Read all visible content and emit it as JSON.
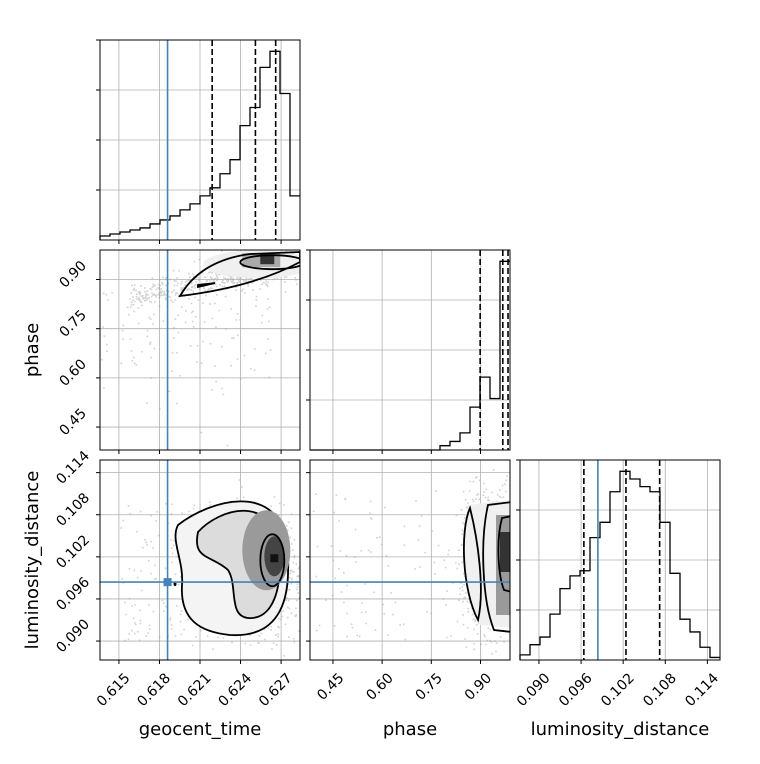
{
  "chart_data": {
    "type": "corner",
    "parameters": [
      "geocent_time",
      "phase",
      "luminosity_distance"
    ],
    "ranges": {
      "geocent_time": [
        0.6136,
        0.6284
      ],
      "phase": [
        0.38,
        0.99
      ],
      "luminosity_distance": [
        0.0873,
        0.1158
      ]
    },
    "ticks": {
      "geocent_time": [
        "0.615",
        "0.618",
        "0.621",
        "0.624",
        "0.627"
      ],
      "phase": [
        "0.45",
        "0.60",
        "0.75",
        "0.90"
      ],
      "luminosity_distance": [
        "0.090",
        "0.096",
        "0.102",
        "0.108",
        "0.114"
      ]
    },
    "truth": {
      "color": "#4682b4",
      "geocent_time": 0.6186,
      "luminosity_distance": 0.0984
    },
    "quantiles": {
      "geocent_time": [
        0.6219,
        0.6251,
        0.6266
      ],
      "phase": [
        0.899,
        0.968,
        0.984
      ],
      "luminosity_distance": [
        0.0964,
        0.1024,
        0.1072
      ]
    },
    "histograms": {
      "geocent_time": {
        "bin_start": 0.6136,
        "bin_width": 0.00074,
        "counts": [
          2,
          3,
          4,
          5,
          6,
          8,
          10,
          12,
          15,
          18,
          22,
          26,
          33,
          40,
          57,
          66,
          86,
          94,
          73,
          22
        ]
      },
      "phase": {
        "bin_start": 0.38,
        "bin_width": 0.0305,
        "counts": [
          0,
          0,
          0,
          0,
          0,
          0,
          0,
          0,
          0,
          0,
          0,
          0,
          0,
          1,
          2,
          4,
          10,
          17,
          12,
          44
        ]
      },
      "luminosity_distance": {
        "bin_start": 0.0873,
        "bin_width": 0.001425,
        "counts": [
          2,
          6,
          9,
          18,
          28,
          33,
          35,
          48,
          54,
          66,
          74,
          71,
          68,
          66,
          54,
          34,
          16,
          11,
          5,
          1
        ]
      }
    },
    "density_peaks": {
      "geocent_time_vs_phase": {
        "geocent_time": 0.6262,
        "phase": 0.965
      },
      "geocent_time_vs_luminosity_distance": {
        "geocent_time": 0.6265,
        "luminosity_distance": 0.1018
      },
      "phase_vs_luminosity_distance": {
        "phase": 0.978,
        "luminosity_distance": 0.1025
      }
    },
    "grid": true
  }
}
